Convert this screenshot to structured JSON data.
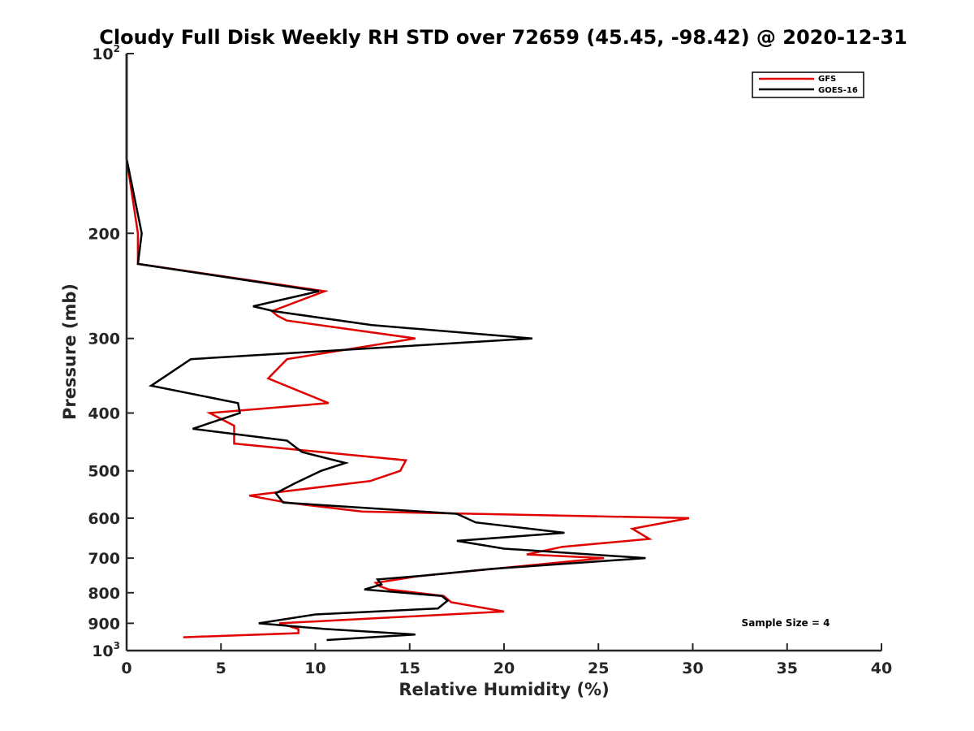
{
  "chart_data": {
    "type": "line",
    "title": "Cloudy Full Disk Weekly RH STD over 72659 (45.45, -98.42) @ 2020-12-31",
    "xlabel": "Relative Humidity (%)",
    "ylabel": "Pressure (mb)",
    "xlim": [
      0,
      40
    ],
    "ylim": [
      1000,
      100
    ],
    "y_scale": "log",
    "y_reversed": true,
    "x_ticks": [
      "0",
      "5",
      "10",
      "15",
      "20",
      "25",
      "30",
      "35",
      "40"
    ],
    "y_ticks": [
      {
        "value": 100,
        "base": "10",
        "exp": "2"
      },
      {
        "value": 200,
        "label": "200"
      },
      {
        "value": 300,
        "label": "300"
      },
      {
        "value": 400,
        "label": "400"
      },
      {
        "value": 500,
        "label": "500"
      },
      {
        "value": 600,
        "label": "600"
      },
      {
        "value": 700,
        "label": "700"
      },
      {
        "value": 800,
        "label": "800"
      },
      {
        "value": 900,
        "label": "900"
      },
      {
        "value": 1000,
        "base": "10",
        "exp": "3"
      }
    ],
    "grid": false,
    "legend_position": "top-right",
    "annotation": "Sample Size = 4",
    "series": [
      {
        "name": "GFS",
        "color": "#e00000",
        "points": [
          [
            0.0,
            100
          ],
          [
            0.0,
            150
          ],
          [
            0.6,
            200
          ],
          [
            0.6,
            225
          ],
          [
            10.5,
            250
          ],
          [
            7.7,
            270
          ],
          [
            8.0,
            275
          ],
          [
            8.5,
            280
          ],
          [
            15.3,
            300
          ],
          [
            8.5,
            325
          ],
          [
            7.5,
            350
          ],
          [
            10.7,
            385
          ],
          [
            4.4,
            400
          ],
          [
            5.7,
            420
          ],
          [
            5.7,
            450
          ],
          [
            14.8,
            480
          ],
          [
            14.5,
            500
          ],
          [
            12.9,
            520
          ],
          [
            6.5,
            550
          ],
          [
            8.5,
            565
          ],
          [
            12.5,
            585
          ],
          [
            29.8,
            600
          ],
          [
            26.8,
            625
          ],
          [
            27.7,
            650
          ],
          [
            23.1,
            670
          ],
          [
            21.2,
            690
          ],
          [
            25.3,
            700
          ],
          [
            15.5,
            750
          ],
          [
            13.2,
            770
          ],
          [
            13.4,
            780
          ],
          [
            13.9,
            790
          ],
          [
            16.8,
            810
          ],
          [
            17.2,
            830
          ],
          [
            20.0,
            860
          ],
          [
            8.1,
            900
          ],
          [
            9.1,
            920
          ],
          [
            9.1,
            935
          ],
          [
            3.0,
            950
          ]
        ]
      },
      {
        "name": "GOES-16",
        "color": "#000000",
        "points": [
          [
            0.0,
            100
          ],
          [
            0.0,
            150
          ],
          [
            0.8,
            200
          ],
          [
            0.6,
            225
          ],
          [
            10.2,
            250
          ],
          [
            6.7,
            265
          ],
          [
            7.8,
            270
          ],
          [
            13.0,
            285
          ],
          [
            21.5,
            300
          ],
          [
            3.4,
            325
          ],
          [
            1.3,
            360
          ],
          [
            5.9,
            385
          ],
          [
            6.0,
            400
          ],
          [
            3.5,
            425
          ],
          [
            8.5,
            445
          ],
          [
            9.3,
            465
          ],
          [
            11.6,
            485
          ],
          [
            10.3,
            500
          ],
          [
            8.9,
            525
          ],
          [
            7.9,
            545
          ],
          [
            8.3,
            565
          ],
          [
            17.5,
            590
          ],
          [
            18.5,
            610
          ],
          [
            23.2,
            635
          ],
          [
            17.5,
            655
          ],
          [
            20.0,
            675
          ],
          [
            27.5,
            700
          ],
          [
            19.3,
            730
          ],
          [
            15.5,
            750
          ],
          [
            13.3,
            760
          ],
          [
            13.5,
            775
          ],
          [
            12.6,
            790
          ],
          [
            16.7,
            810
          ],
          [
            17.0,
            825
          ],
          [
            16.5,
            850
          ],
          [
            10.0,
            870
          ],
          [
            7.0,
            900
          ],
          [
            10.5,
            920
          ],
          [
            15.3,
            940
          ],
          [
            10.6,
            960
          ]
        ]
      }
    ]
  }
}
